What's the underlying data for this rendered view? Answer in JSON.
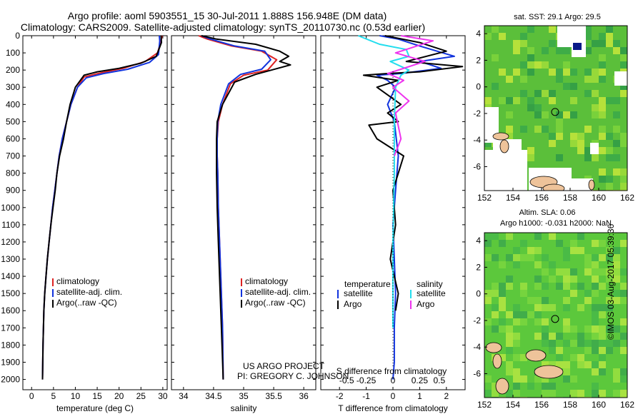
{
  "header": {
    "line1": "Argo profile: aoml 5903551_15 30-Jul-2011 1.888S 156.948E (DM data)",
    "line2": "Climatology: CARS2009. Satellite-adjusted climatology: synTS_20110730.nc (0.53d earlier)"
  },
  "colors": {
    "clim": "#dd2222",
    "sat": "#1133dd",
    "argo": "#000000",
    "sal_sat": "#22ddee",
    "sal_argo": "#ee33ee"
  },
  "chart_data": [
    {
      "type": "line",
      "id": "temperature",
      "xlabel": "temperature (deg C)",
      "xlim": [
        -2,
        31
      ],
      "xticks": [
        0,
        5,
        10,
        15,
        20,
        25,
        30
      ],
      "ylim": [
        2060,
        0
      ],
      "yticks": [
        0,
        100,
        200,
        300,
        400,
        500,
        600,
        700,
        800,
        900,
        1000,
        1100,
        1200,
        1300,
        1400,
        1500,
        1600,
        1700,
        1800,
        1900,
        2000
      ],
      "legend": [
        "climatology",
        "satellite-adj. clim.",
        "Argo(..raw -QC)"
      ],
      "series": [
        {
          "name": "climatology",
          "color": "#dd2222",
          "x": [
            29.8,
            29.6,
            28.8,
            26,
            21,
            16,
            12,
            10.5,
            9,
            8,
            7,
            6.3,
            5.8,
            5.3,
            4.8,
            4.4,
            4.0,
            3.6,
            3.3,
            3.0,
            2.8,
            2.6,
            2.5
          ],
          "y": [
            0,
            30,
            100,
            150,
            190,
            215,
            240,
            300,
            400,
            500,
            600,
            700,
            800,
            900,
            1000,
            1100,
            1200,
            1300,
            1400,
            1500,
            1600,
            1800,
            2000
          ]
        },
        {
          "name": "satellite-adj. clim.",
          "color": "#1133dd",
          "x": [
            29.2,
            29.3,
            29,
            27,
            22,
            16.5,
            12.5,
            10.5,
            9,
            8,
            7,
            6.3,
            5.8,
            5.3,
            4.8,
            4.4,
            4.0,
            3.6,
            3.3,
            3.0,
            2.8,
            2.6,
            2.5
          ],
          "y": [
            0,
            30,
            110,
            155,
            195,
            220,
            245,
            300,
            400,
            500,
            600,
            700,
            800,
            900,
            1000,
            1100,
            1200,
            1300,
            1400,
            1500,
            1600,
            1800,
            2000
          ]
        },
        {
          "name": "Argo(..raw -QC)",
          "color": "#000000",
          "x": [
            29.6,
            29.7,
            28.5,
            25,
            20,
            15,
            12,
            10,
            8.8,
            8,
            7.3,
            6.4,
            5.8,
            5.4,
            4.9,
            4.4,
            4.0,
            3.6,
            3.3,
            3.0,
            2.8,
            2.6,
            2.5
          ],
          "y": [
            0,
            40,
            120,
            160,
            190,
            210,
            230,
            300,
            400,
            500,
            600,
            700,
            800,
            900,
            1000,
            1100,
            1200,
            1300,
            1400,
            1500,
            1600,
            1800,
            2000
          ]
        }
      ]
    },
    {
      "type": "line",
      "id": "salinity",
      "xlabel": "salinity",
      "xlim": [
        33.8,
        36.2
      ],
      "xticks": [
        34,
        34.5,
        35,
        35.5,
        36
      ],
      "ylim": [
        2060,
        0
      ],
      "legend": [
        "climatology",
        "satellite-adj. clim.",
        "Argo(..raw -QC)"
      ],
      "series": [
        {
          "name": "climatology",
          "color": "#dd2222",
          "x": [
            34.25,
            34.4,
            34.8,
            35.3,
            35.55,
            35.4,
            35.0,
            34.78,
            34.65,
            34.58,
            34.56,
            34.56,
            34.57,
            34.58,
            34.6,
            34.62,
            34.65,
            34.66
          ],
          "y": [
            0,
            20,
            60,
            90,
            140,
            200,
            230,
            280,
            400,
            500,
            600,
            700,
            800,
            1000,
            1200,
            1400,
            1700,
            2000
          ]
        },
        {
          "name": "satellite-adj. clim.",
          "color": "#1133dd",
          "x": [
            34.3,
            34.45,
            34.85,
            35.35,
            35.45,
            35.3,
            34.95,
            34.75,
            34.62,
            34.57,
            34.56,
            34.56,
            34.57,
            34.58,
            34.6,
            34.62,
            34.65,
            34.66
          ],
          "y": [
            0,
            20,
            60,
            90,
            140,
            195,
            225,
            280,
            400,
            500,
            600,
            700,
            800,
            1000,
            1200,
            1400,
            1700,
            2000
          ]
        },
        {
          "name": "Argo(..raw -QC)",
          "color": "#000000",
          "x": [
            34.3,
            34.55,
            35.2,
            35.6,
            35.75,
            35.6,
            35.78,
            35.2,
            34.85,
            34.65,
            34.56,
            34.55,
            34.55,
            34.56,
            34.58,
            34.6,
            34.63,
            34.66
          ],
          "y": [
            0,
            20,
            50,
            90,
            120,
            150,
            170,
            225,
            270,
            400,
            500,
            600,
            800,
            1000,
            1200,
            1400,
            1700,
            2000
          ]
        }
      ]
    },
    {
      "type": "line",
      "id": "differences",
      "xlabel": "T difference from climatology",
      "xlabel2": "S difference from climatology",
      "xlim": [
        -2.7,
        2.7
      ],
      "xticks": [
        -2,
        -1,
        0,
        1,
        2
      ],
      "xticks_top": [
        -0.5,
        -0.25,
        0,
        0.25,
        0.5
      ],
      "ylim": [
        2060,
        0
      ],
      "legend_headers": [
        "temperature",
        "salinity"
      ],
      "legend": [
        "satellite",
        "Argo",
        "satellite",
        "Argo"
      ],
      "series": [
        {
          "name": "T satellite",
          "color": "#1133dd",
          "x": [
            -0.5,
            0.2,
            1.0,
            2.3,
            1.0,
            1.8,
            0.3,
            -0.6,
            -0.2,
            0.1,
            -0.2,
            0.05,
            0.2,
            0.1,
            0.0,
            0.05,
            0.1,
            0.05,
            0.05,
            0.0
          ],
          "y": [
            0,
            20,
            60,
            120,
            150,
            190,
            220,
            230,
            260,
            300,
            400,
            500,
            700,
            900,
            1100,
            1300,
            1500,
            1700,
            1900,
            2000
          ]
        },
        {
          "name": "T Argo",
          "color": "#000000",
          "x": [
            -0.3,
            1.0,
            2.0,
            0.5,
            2.6,
            1.0,
            -0.2,
            -1.1,
            0.2,
            -0.6,
            0.3,
            -0.2,
            0.2,
            -0.9,
            -0.6,
            0.4,
            0.2,
            0.0,
            0.1,
            -0.1,
            0.2,
            0.1
          ],
          "y": [
            0,
            40,
            90,
            150,
            180,
            210,
            220,
            230,
            260,
            300,
            400,
            450,
            500,
            520,
            600,
            700,
            800,
            900,
            1100,
            1300,
            1500,
            1600
          ]
        },
        {
          "name": "S satellite",
          "color": "#22ddee",
          "x": [
            -1.3,
            -0.5,
            0.5,
            0.6,
            -0.1,
            0.6,
            0.3,
            0.1,
            0.05,
            0.05,
            0.0,
            0.0,
            0.0
          ],
          "y": [
            0,
            50,
            80,
            120,
            150,
            200,
            230,
            300,
            500,
            800,
            1200,
            1500,
            1700
          ]
        },
        {
          "name": "S Argo",
          "color": "#ee33ee",
          "x": [
            0.3,
            1.5,
            0.1,
            1.2,
            -0.2,
            0.4,
            0.0,
            0.6,
            0.1,
            0.3,
            0.05
          ],
          "y": [
            0,
            30,
            100,
            150,
            220,
            260,
            300,
            380,
            450,
            600,
            700
          ]
        }
      ]
    }
  ],
  "maps": {
    "sst": {
      "title": "sat. SST: 29.1 Argo: 29.5",
      "xticks": [
        152,
        154,
        156,
        158,
        160,
        162
      ],
      "yticks": [
        4,
        2,
        0,
        -2,
        -4,
        -6
      ],
      "float_lon": 156.948,
      "float_lat": -1.888
    },
    "sla": {
      "title1": "Altim. SLA: 0.06",
      "title2": "Argo h1000: -0.031 h2000: NaN",
      "xticks": [
        152,
        154,
        156,
        158,
        160,
        162
      ],
      "yticks": [
        4,
        2,
        0,
        -2,
        -4,
        -6
      ],
      "float_lon": 156.948,
      "float_lat": -1.888
    }
  },
  "credits": {
    "line1": "US ARGO PROJECT",
    "line2": "PI: GREGORY C. JOHNSON",
    "stamp": "©IMOS 03-Aug-2017 05:39:36"
  }
}
